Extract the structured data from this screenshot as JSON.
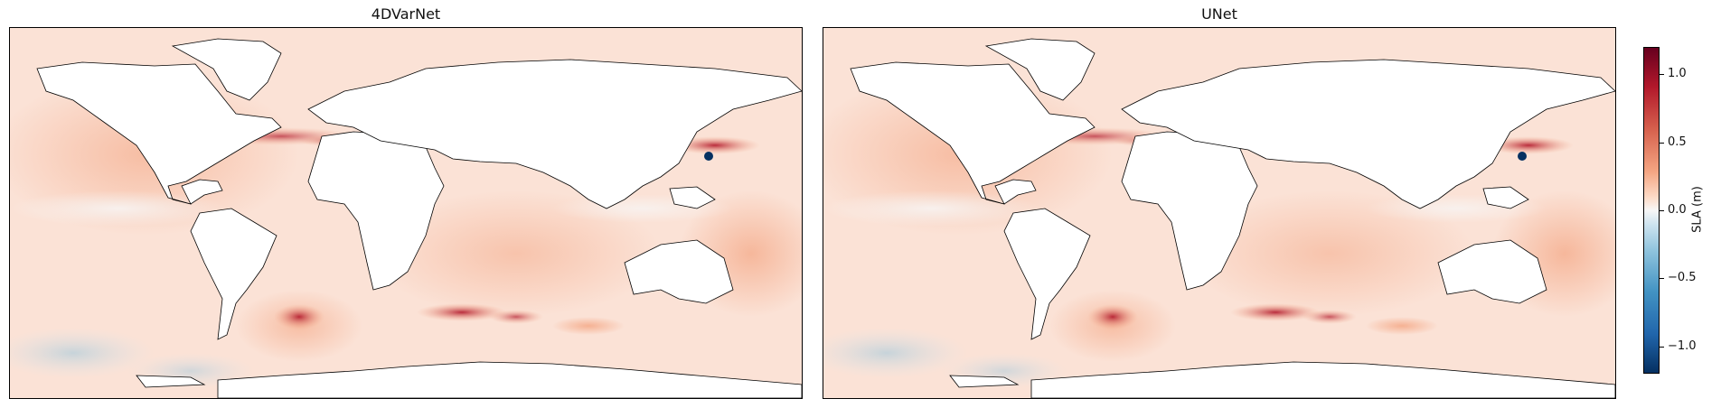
{
  "panels": [
    {
      "title": "4DVarNet"
    },
    {
      "title": "UNet"
    }
  ],
  "colorbar": {
    "label": "SLA (m)",
    "ticks": [
      "1.0",
      "0.5",
      "0.0",
      "−0.5",
      "−1.0"
    ],
    "tick_values": [
      1.0,
      0.5,
      0.0,
      -0.5,
      -1.0
    ],
    "range": [
      -1.2,
      1.2
    ],
    "colormap": "RdBu_r",
    "colors": [
      "#053061",
      "#2166ac",
      "#4393c3",
      "#92c5de",
      "#d1e5f0",
      "#f7f7f7",
      "#fddbc7",
      "#f4a582",
      "#d6604d",
      "#b2182b",
      "#67001f"
    ]
  },
  "map": {
    "projection": "PlateCarree",
    "ocean_base_color": "#fbe2d6",
    "land_color": "#ffffff",
    "coastline_color": "#000000"
  }
}
